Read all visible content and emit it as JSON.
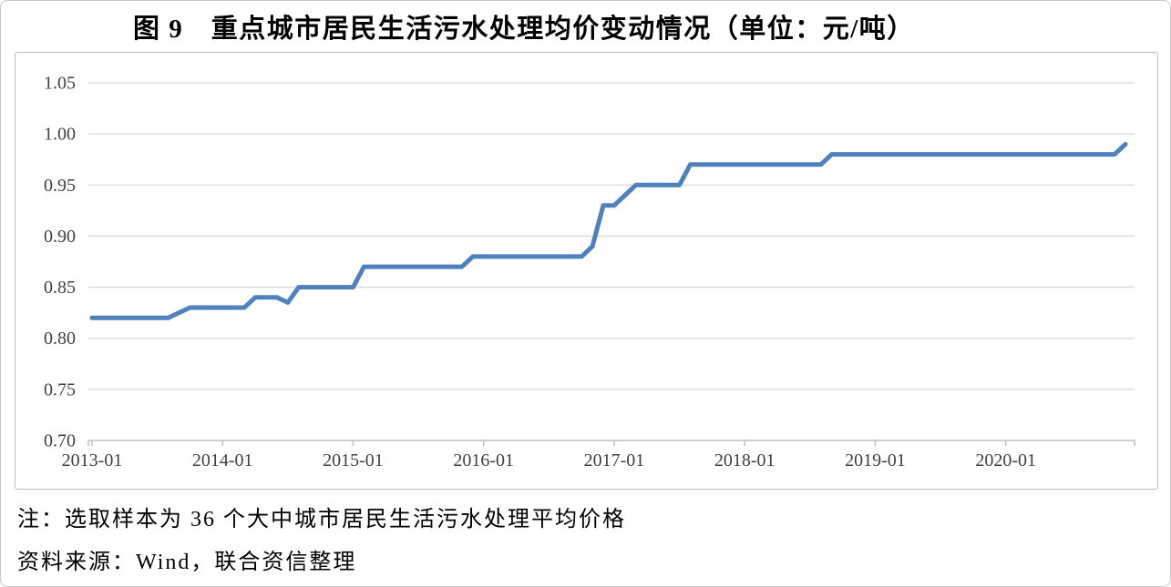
{
  "figure": {
    "title": "图 9　重点城市居民生活污水处理均价变动情况（单位：元/吨）",
    "note": "注：选取样本为 36 个大中城市居民生活污水处理平均价格",
    "source": "资料来源：Wind，联合资信整理"
  },
  "colors": {
    "line": "#4F81BD",
    "grid": "#D9D9D9",
    "axis": "#BFBFBF",
    "tick_text": "#404040",
    "box_border": "#BFBFBF"
  },
  "chart_data": {
    "type": "line",
    "title": "重点城市居民生活污水处理均价变动情况",
    "unit": "元/吨",
    "frequency": "monthly",
    "x_start": "2013-01",
    "x_end": "2020-12",
    "x_tick_labels": [
      "2013-01",
      "2014-01",
      "2015-01",
      "2016-01",
      "2017-01",
      "2018-01",
      "2019-01",
      "2020-01"
    ],
    "y_ticks": [
      0.7,
      0.75,
      0.8,
      0.85,
      0.9,
      0.95,
      1.0,
      1.05
    ],
    "ylim": [
      0.7,
      1.05
    ],
    "grid": true,
    "legend": false,
    "series": [
      {
        "name": "重点城市居民生活污水处理均价",
        "values": [
          0.82,
          0.82,
          0.82,
          0.82,
          0.82,
          0.82,
          0.82,
          0.82,
          0.825,
          0.83,
          0.83,
          0.83,
          0.83,
          0.83,
          0.83,
          0.84,
          0.84,
          0.84,
          0.835,
          0.85,
          0.85,
          0.85,
          0.85,
          0.85,
          0.85,
          0.87,
          0.87,
          0.87,
          0.87,
          0.87,
          0.87,
          0.87,
          0.87,
          0.87,
          0.87,
          0.88,
          0.88,
          0.88,
          0.88,
          0.88,
          0.88,
          0.88,
          0.88,
          0.88,
          0.88,
          0.88,
          0.89,
          0.93,
          0.93,
          0.94,
          0.95,
          0.95,
          0.95,
          0.95,
          0.95,
          0.97,
          0.97,
          0.97,
          0.97,
          0.97,
          0.97,
          0.97,
          0.97,
          0.97,
          0.97,
          0.97,
          0.97,
          0.97,
          0.98,
          0.98,
          0.98,
          0.98,
          0.98,
          0.98,
          0.98,
          0.98,
          0.98,
          0.98,
          0.98,
          0.98,
          0.98,
          0.98,
          0.98,
          0.98,
          0.98,
          0.98,
          0.98,
          0.98,
          0.98,
          0.98,
          0.98,
          0.98,
          0.98,
          0.98,
          0.98,
          0.99
        ]
      }
    ]
  }
}
